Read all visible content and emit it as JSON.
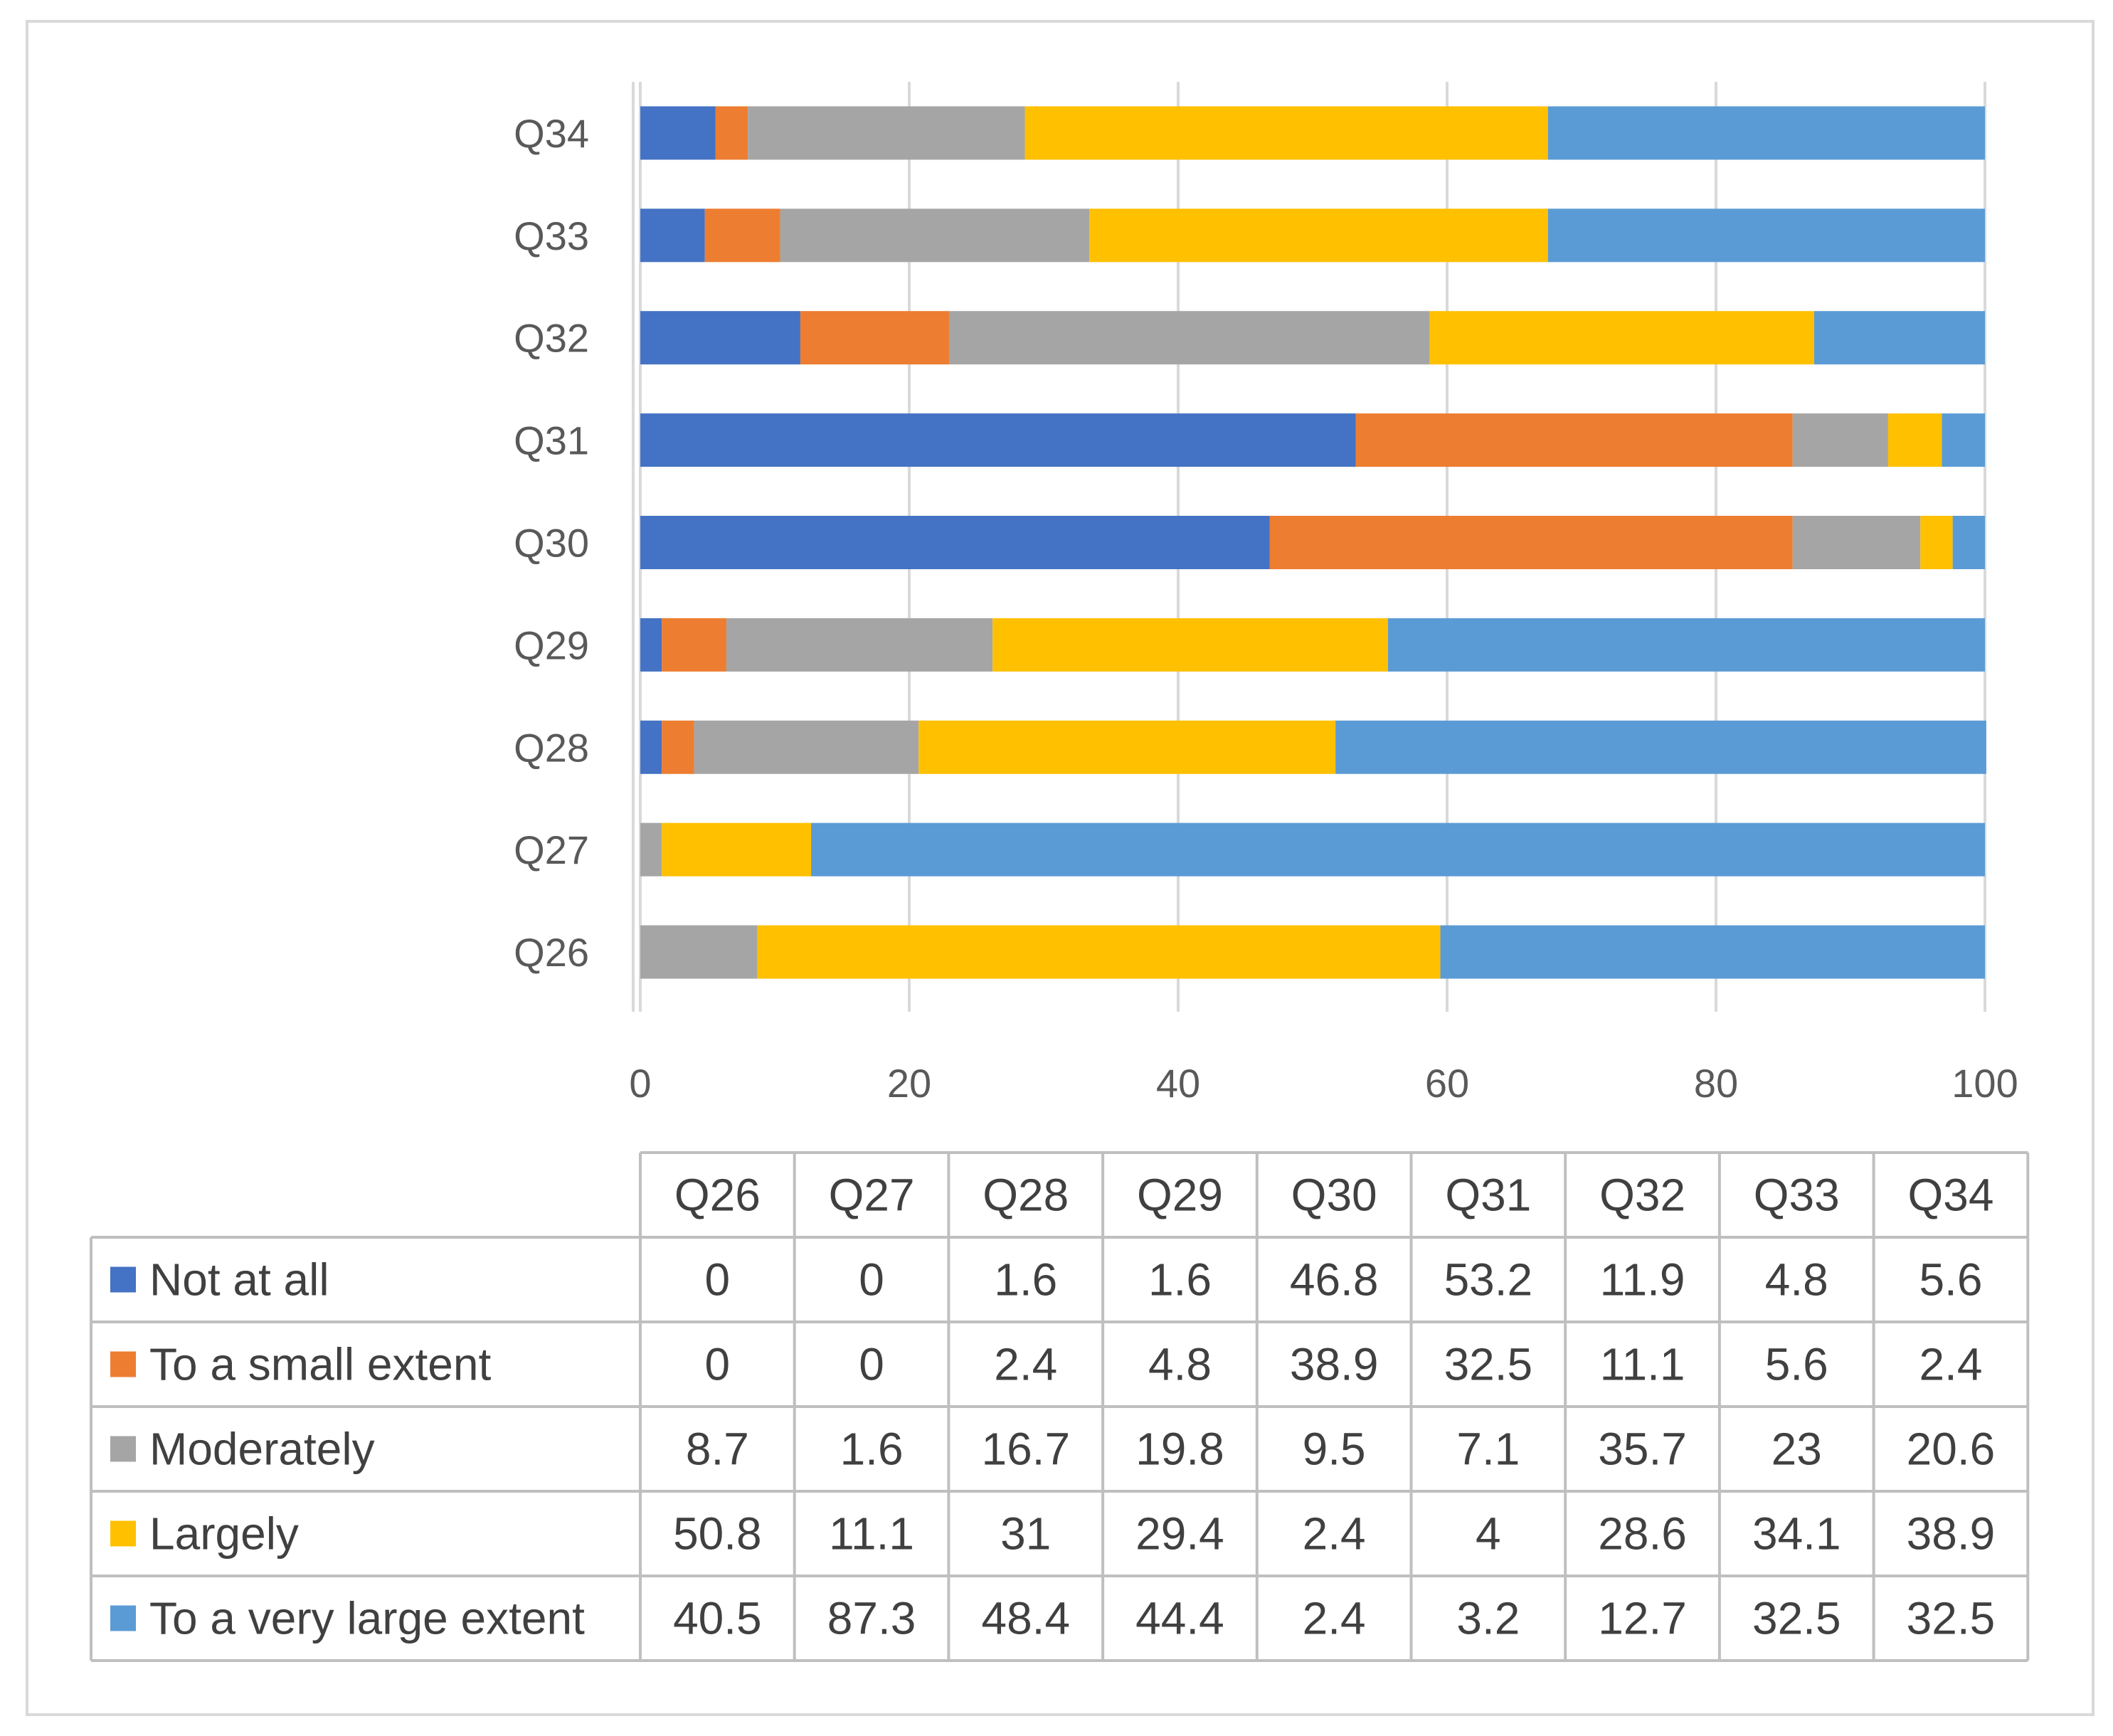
{
  "chart_data": {
    "type": "bar",
    "orientation": "horizontal",
    "stacked": true,
    "title": "",
    "xlabel": "",
    "ylabel": "",
    "xlim": [
      0,
      100
    ],
    "x_ticks": [
      "0",
      "20",
      "40",
      "60",
      "80",
      "100"
    ],
    "categories": [
      "Q26",
      "Q27",
      "Q28",
      "Q29",
      "Q30",
      "Q31",
      "Q32",
      "Q33",
      "Q34"
    ],
    "series": [
      {
        "name": "Not at all",
        "color": "#4472C4",
        "values": [
          0,
          0,
          1.6,
          1.6,
          46.8,
          53.2,
          11.9,
          4.8,
          5.6
        ],
        "labels": [
          "0",
          "0",
          "1.6",
          "1.6",
          "46.8",
          "53.2",
          "11.9",
          "4.8",
          "5.6"
        ]
      },
      {
        "name": "To a small extent",
        "color": "#ED7D31",
        "values": [
          0,
          0,
          2.4,
          4.8,
          38.9,
          32.5,
          11.1,
          5.6,
          2.4
        ],
        "labels": [
          "0",
          "0",
          "2.4",
          "4.8",
          "38.9",
          "32.5",
          "11.1",
          "5.6",
          "2.4"
        ]
      },
      {
        "name": "Moderately",
        "color": "#A5A5A5",
        "values": [
          8.7,
          1.6,
          16.7,
          19.8,
          9.5,
          7.1,
          35.7,
          23,
          20.6
        ],
        "labels": [
          "8.7",
          "1.6",
          "16.7",
          "19.8",
          "9.5",
          "7.1",
          "35.7",
          "23",
          "20.6"
        ]
      },
      {
        "name": "Largely",
        "color": "#FFC000",
        "values": [
          50.8,
          11.1,
          31,
          29.4,
          2.4,
          4,
          28.6,
          34.1,
          38.9
        ],
        "labels": [
          "50.8",
          "11.1",
          "31",
          "29.4",
          "2.4",
          "4",
          "28.6",
          "34.1",
          "38.9"
        ]
      },
      {
        "name": "To a very large extent",
        "color": "#5B9BD5",
        "values": [
          40.5,
          87.3,
          48.4,
          44.4,
          2.4,
          3.2,
          12.7,
          32.5,
          32.5
        ],
        "labels": [
          "40.5",
          "87.3",
          "48.4",
          "44.4",
          "2.4",
          "3.2",
          "12.7",
          "32.5",
          "32.5"
        ]
      }
    ],
    "legend": "data-table-below",
    "grid": true
  }
}
